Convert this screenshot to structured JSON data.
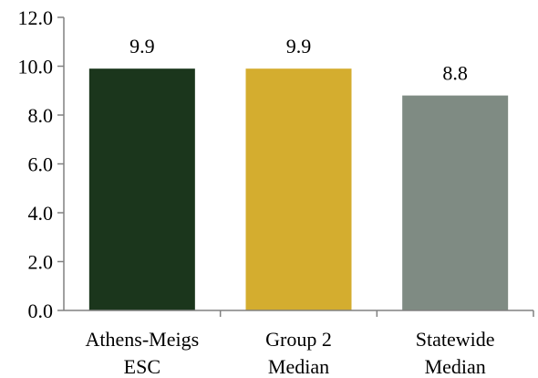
{
  "chart_data": {
    "type": "bar",
    "categories": [
      [
        "Athens-Meigs",
        "ESC"
      ],
      [
        "Group 2",
        "Median"
      ],
      [
        "Statewide",
        "Median"
      ]
    ],
    "values": [
      9.9,
      9.9,
      8.8
    ],
    "data_labels": [
      "9.9",
      "9.9",
      "8.8"
    ],
    "colors": [
      "#1b361c",
      "#d4ad2f",
      "#7f8b83"
    ],
    "ylim": [
      0,
      12
    ],
    "yticks": [
      0,
      2,
      4,
      6,
      8,
      10,
      12
    ],
    "ytick_labels": [
      "0.0",
      "2.0",
      "4.0",
      "6.0",
      "8.0",
      "10.0",
      "12.0"
    ],
    "grid": false,
    "title": "",
    "xlabel": "",
    "ylabel": ""
  }
}
